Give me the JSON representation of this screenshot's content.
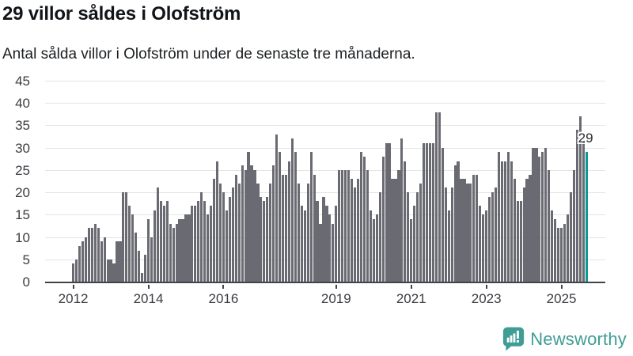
{
  "header": {
    "title": "29 villor såldes i Olofström",
    "subtitle": "Antal sålda villor i Olofström under de senaste tre månaderna."
  },
  "chart_data": {
    "type": "bar",
    "title": "29 villor såldes i Olofström",
    "subtitle": "Antal sålda villor i Olofström under de senaste tre månaderna.",
    "ylabel": "",
    "xlabel": "",
    "ylim": [
      0,
      45
    ],
    "y_ticks": [
      0,
      5,
      10,
      15,
      20,
      25,
      30,
      35,
      40,
      45
    ],
    "grid": "horizontal",
    "start_year": 2012,
    "x_ticks": [
      {
        "label": "2012",
        "month_index": 0
      },
      {
        "label": "2014",
        "month_index": 24
      },
      {
        "label": "2016",
        "month_index": 48
      },
      {
        "label": "2019",
        "month_index": 84
      },
      {
        "label": "2021",
        "month_index": 108
      },
      {
        "label": "2023",
        "month_index": 132
      },
      {
        "label": "2025",
        "month_index": 156
      }
    ],
    "values": [
      4,
      5,
      8,
      9,
      10,
      12,
      12,
      13,
      12,
      9,
      10,
      5,
      5,
      4,
      9,
      9,
      20,
      20,
      17,
      15,
      11,
      7,
      2,
      6,
      14,
      10,
      16,
      21,
      18,
      17,
      18,
      13,
      12,
      13,
      14,
      14,
      15,
      15,
      17,
      17,
      18,
      20,
      18,
      15,
      17,
      23,
      27,
      22,
      20,
      16,
      19,
      21,
      24,
      22,
      26,
      25,
      29,
      26,
      25,
      22,
      19,
      18,
      19,
      22,
      26,
      33,
      29,
      24,
      24,
      27,
      32,
      29,
      22,
      17,
      16,
      22,
      29,
      24,
      18,
      13,
      19,
      17,
      15,
      13,
      17,
      25,
      25,
      25,
      25,
      23,
      21,
      23,
      29,
      28,
      25,
      16,
      14,
      15,
      20,
      28,
      31,
      31,
      23,
      23,
      25,
      32,
      27,
      20,
      14,
      17,
      20,
      22,
      31,
      31,
      31,
      31,
      38,
      38,
      30,
      21,
      16,
      21,
      26,
      27,
      23,
      23,
      22,
      22,
      24,
      24,
      17,
      15,
      16,
      19,
      20,
      21,
      29,
      27,
      27,
      29,
      27,
      23,
      18,
      18,
      21,
      23,
      24,
      30,
      30,
      28,
      29,
      30,
      25,
      16,
      14,
      12,
      12,
      13,
      15,
      20,
      25,
      34,
      37,
      32,
      29
    ],
    "highlight_last_bar": true,
    "last_bar_label": "29",
    "bar_color": "#6A6A72",
    "highlight_color": "#0E9A94",
    "gridline_color": "#e4e4e6",
    "axis_color": "#43434a"
  },
  "branding": {
    "logo_text": "Newsworthy",
    "logo_color": "#3F9D95",
    "logo_icon": "speech-bubble-bar-chart-exclamation"
  }
}
